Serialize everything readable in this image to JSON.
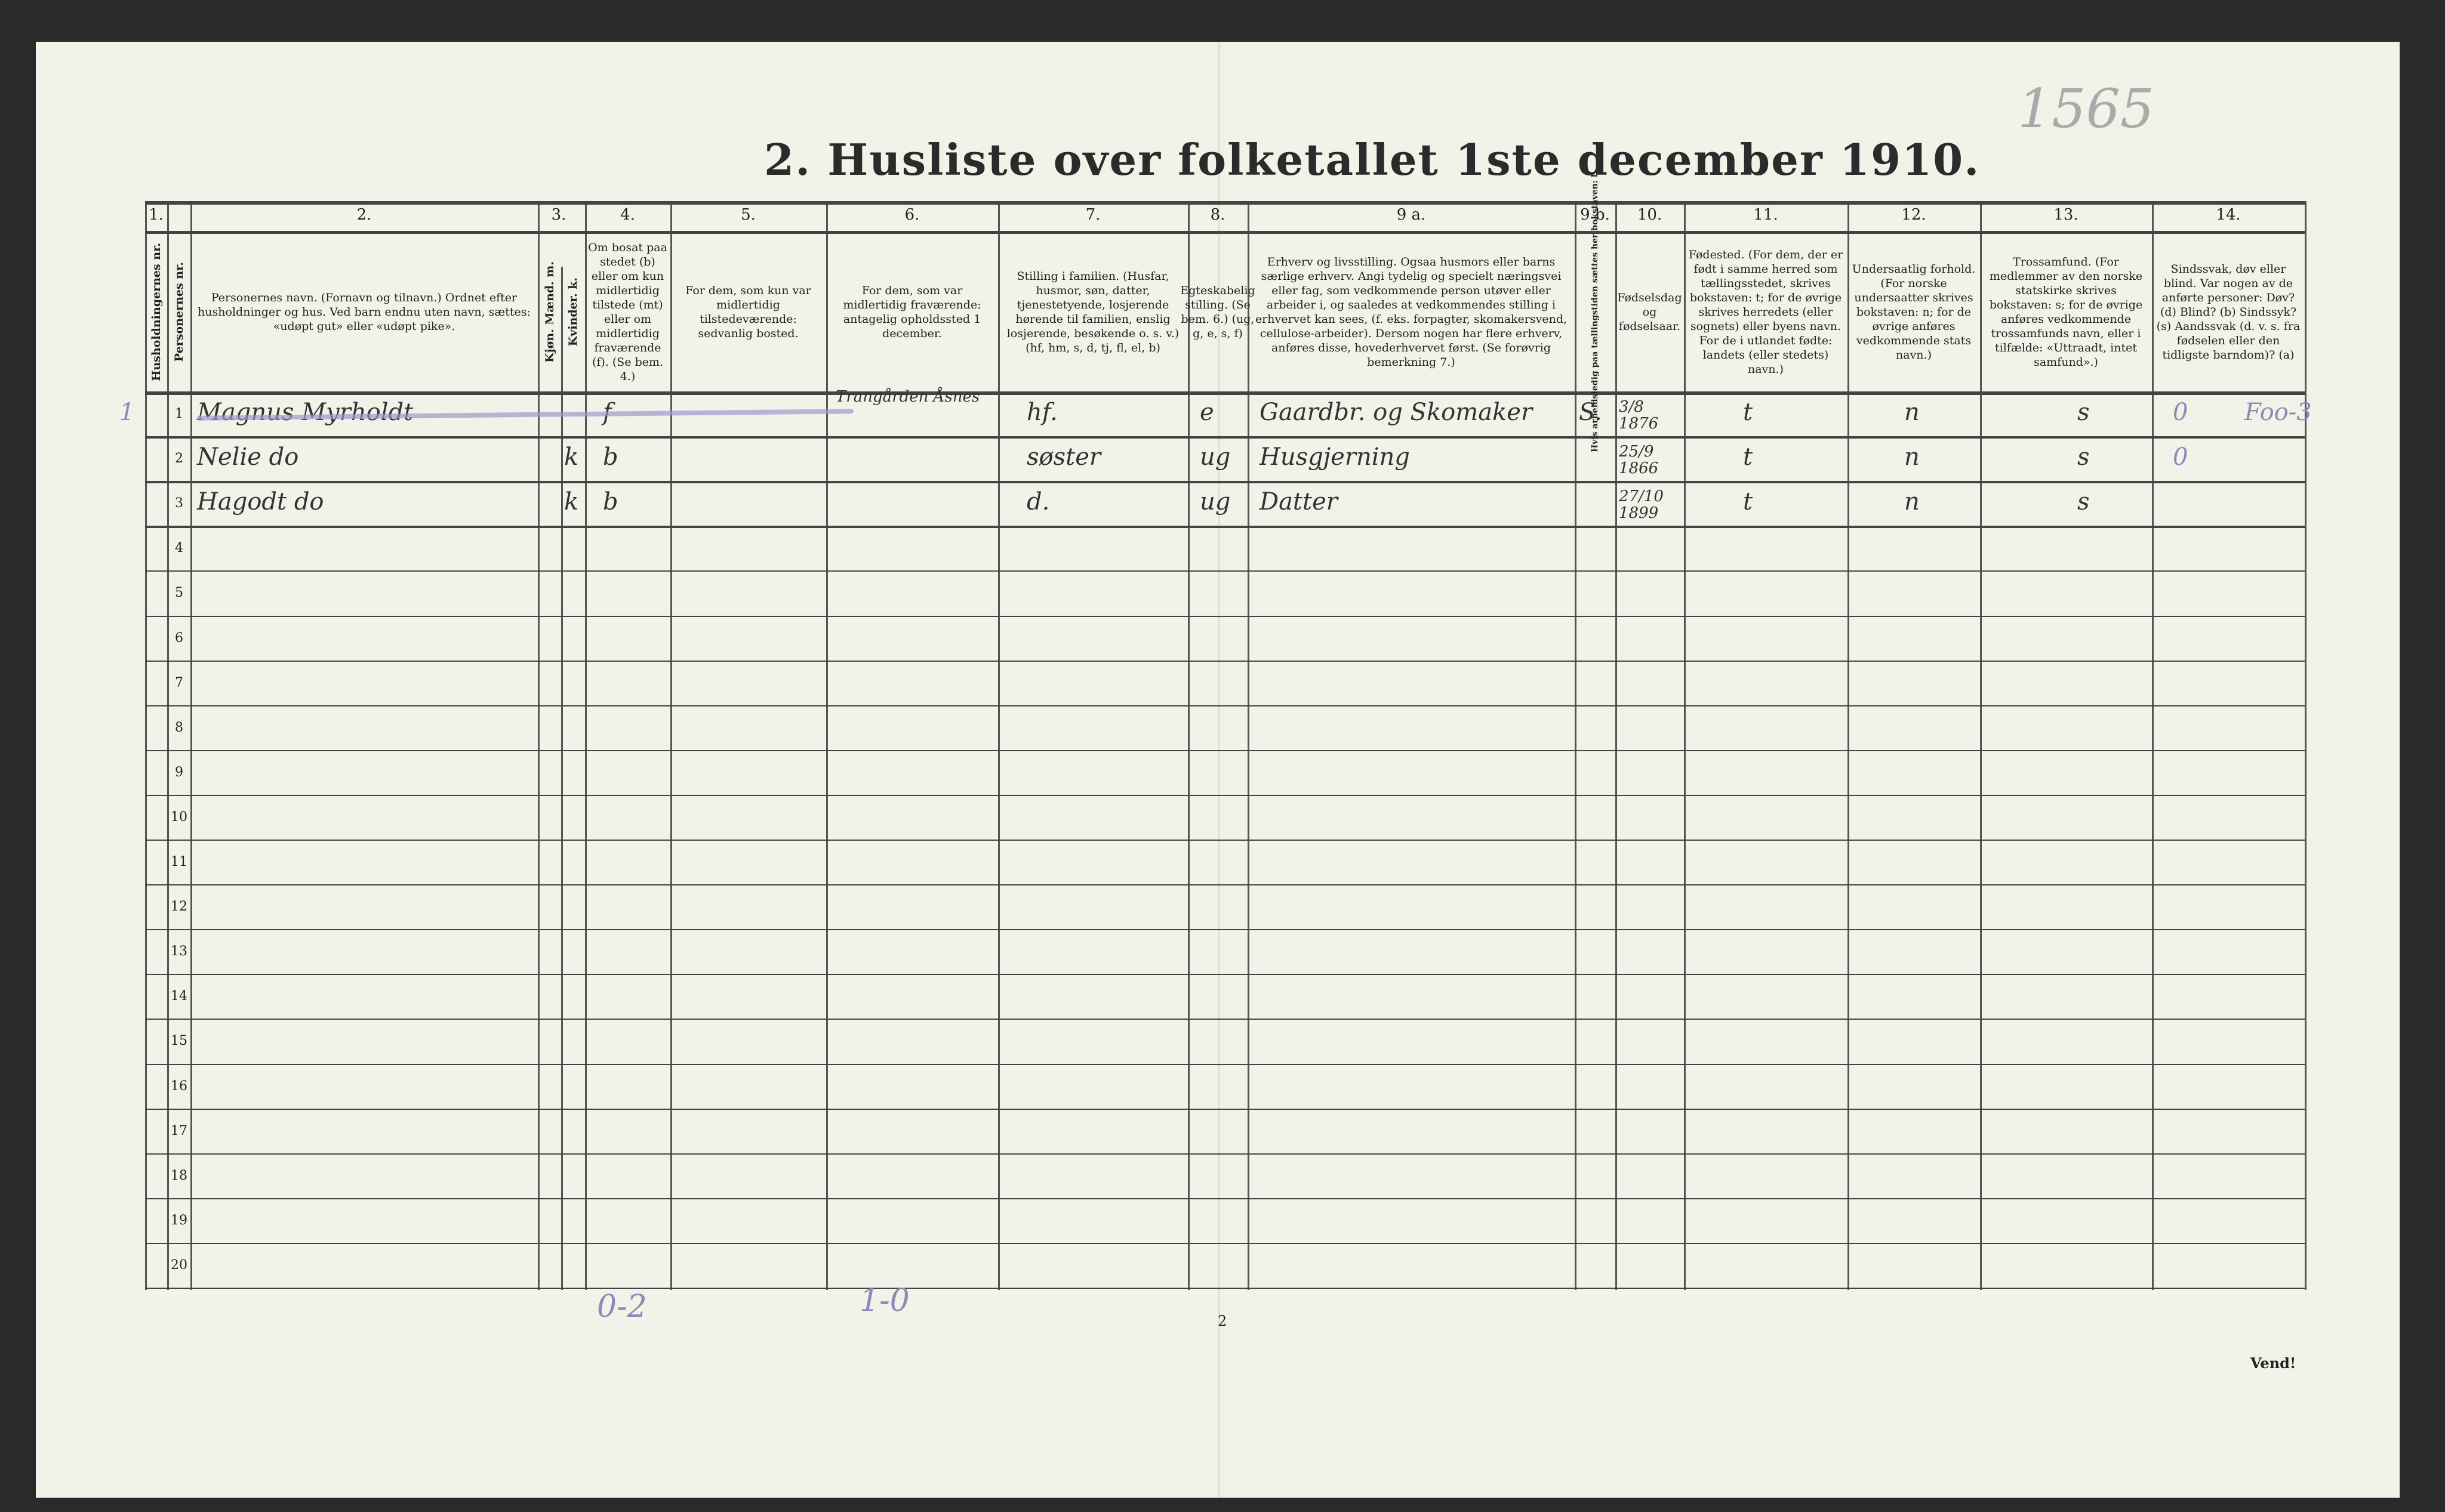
{
  "title": "2.  Husliste over folketallet 1ste december 1910.",
  "stamp_number": "1565",
  "page_number": "2",
  "footer_vend": "Vend!",
  "columns": [
    {
      "num": "1.",
      "header": "Husholdningernes nr."
    },
    {
      "num": "",
      "header": "Personernes nr."
    },
    {
      "num": "2.",
      "header": "Personernes navn. (Fornavn og tilnavn.) Ordnet efter husholdninger og hus. Ved barn endnu uten navn, sættes: «udøpt gut» eller «udøpt pike»."
    },
    {
      "num": "3.",
      "header": "Kjøn. Mænd. m."
    },
    {
      "num": "",
      "header": "Kvinder. k."
    },
    {
      "num": "4.",
      "header": "Om bosat paa stedet (b) eller om kun midlertidig tilstede (mt) eller om midlertidig fraværende (f). (Se bem. 4.)"
    },
    {
      "num": "5.",
      "header": "For dem, som kun var midlertidig tilstedeværende: sedvanlig bosted."
    },
    {
      "num": "6.",
      "header": "For dem, som var midlertidig fraværende: antagelig opholdssted 1 december."
    },
    {
      "num": "7.",
      "header": "Stilling i familien. (Husfar, husmor, søn, datter, tjenestetyende, losjerende hørende til familien, enslig losjerende, besøkende o. s. v.) (hf, hm, s, d, tj, fl, el, b)"
    },
    {
      "num": "8.",
      "header": "Egteskabelig stilling. (Se bem. 6.) (ug, g, e, s, f)"
    },
    {
      "num": "9 a.",
      "header": "Erhverv og livsstilling. Ogsaa husmors eller barns særlige erhverv. Angi tydelig og specielt næringsvei eller fag, som vedkommende person utøver eller arbeider i, og saaledes at vedkommendes stilling i erhvervet kan sees, (f. eks. forpagter, skomakersvend, cellulose-arbeider). Dersom nogen har flere erhverv, anføres disse, hovederhvervet først. (Se forøvrig bemerkning 7.)"
    },
    {
      "num": "9 b.",
      "header": "Hvis arbeidsledig paa tællingstiden sættes her bokstaven: l."
    },
    {
      "num": "10.",
      "header": "Fødselsdag og fødselsaar."
    },
    {
      "num": "11.",
      "header": "Fødested. (For dem, der er født i samme herred som tællingsstedet, skrives bokstaven: t; for de øvrige skrives herredets (eller sognets) eller byens navn. For de i utlandet fødte: landets (eller stedets) navn.)"
    },
    {
      "num": "12.",
      "header": "Undersaatlig forhold. (For norske undersaatter skrives bokstaven: n; for de øvrige anføres vedkommende stats navn.)"
    },
    {
      "num": "13.",
      "header": "Trossamfund. (For medlemmer av den norske statskirke skrives bokstaven: s; for de øvrige anføres vedkommende trossamfunds navn, eller i tilfælde: «Uttraadt, intet samfund».)"
    },
    {
      "num": "14.",
      "header": "Sindssvak, døv eller blind. Var nogen av de anførte personer: Døv? (d) Blind? (b) Sindssyk? (s) Aandssvak (d. v. s. fra fødselen eller den tidligste barndom)? (a)"
    }
  ],
  "row_numbers": [
    "1",
    "2",
    "3",
    "4",
    "5",
    "6",
    "7",
    "8",
    "9",
    "10",
    "11",
    "12",
    "13",
    "14",
    "15",
    "16",
    "17",
    "18",
    "19",
    "20"
  ],
  "rows": [
    {
      "hh": "1",
      "name": "Magnus Myrholdt",
      "sex_m": "",
      "sex_k": "",
      "residence": "f",
      "temp_from": "",
      "absent_at": "Trangården Åsnes",
      "family": "hf.",
      "marital": "e",
      "occupation": "Gaardbr. og Skomaker",
      "unemployed": "S.",
      "birth": "3/8 1876",
      "birthplace": "t",
      "citizenship": "n",
      "religion": "s",
      "disability": "0",
      "extra": "Foo-3"
    },
    {
      "hh": "",
      "name": "Nelie  do",
      "sex_m": "",
      "sex_k": "k",
      "residence": "b",
      "temp_from": "",
      "absent_at": "",
      "family": "søster",
      "marital": "ug",
      "occupation": "Husgjerning",
      "unemployed": "",
      "birth": "25/9 1866",
      "birthplace": "t",
      "citizenship": "n",
      "religion": "s",
      "disability": "0",
      "extra": ""
    },
    {
      "hh": "",
      "name": "Hagodt  do",
      "sex_m": "",
      "sex_k": "k",
      "residence": "b",
      "temp_from": "",
      "absent_at": "",
      "family": "d.",
      "marital": "ug",
      "occupation": "Datter",
      "unemployed": "",
      "birth": "27/10 1899",
      "birthplace": "t",
      "citizenship": "n",
      "religion": "s",
      "disability": "",
      "extra": ""
    }
  ],
  "tallies": {
    "col3": "0-2",
    "col6": "1-0"
  },
  "colors": {
    "paper": "#f3f2e8",
    "ink": "#333333",
    "pencil": "#8a8ab8"
  }
}
